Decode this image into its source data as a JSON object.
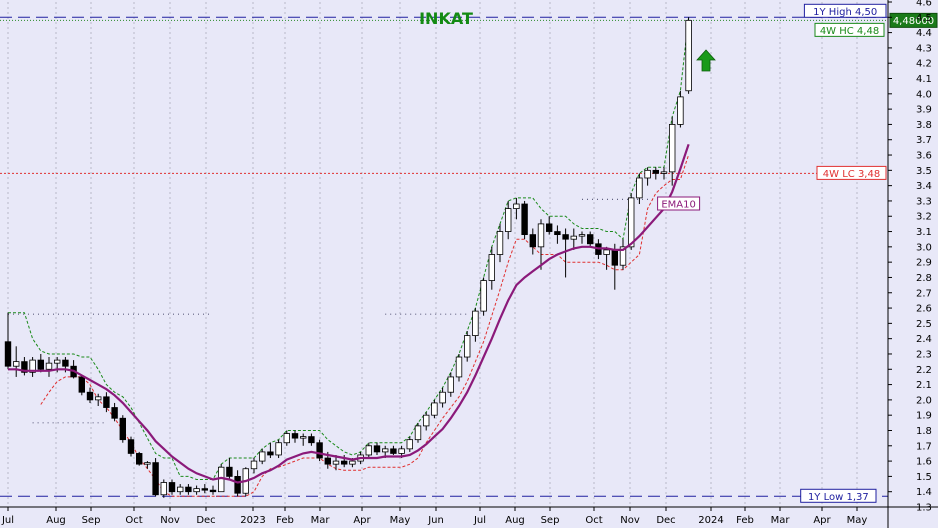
{
  "chart_data": {
    "type": "candlestick",
    "title": "INKAT",
    "colors": {
      "background": "#e8e8f8",
      "grid": "#b8b8c8",
      "up_body": "#ffffff",
      "down_body": "#000000",
      "ema": "#8b1a7a",
      "stop_upper": "#1a8a1a",
      "stop_lower": "#e03030",
      "high_low_line": "#2020a0",
      "last_price_bg": "#1a7a1a",
      "arrow": "#1a9a1a",
      "dotted_levels": "#606080"
    },
    "y_axis": {
      "min": 1.3,
      "max": 4.6,
      "position": "right",
      "ticks": [
        "1.3",
        "1.4",
        "1.5",
        "1.6",
        "1.7",
        "1.8",
        "1.9",
        "2.0",
        "2.1",
        "2.2",
        "2.3",
        "2.4",
        "2.5",
        "2.6",
        "2.7",
        "2.8",
        "2.9",
        "3.0",
        "3.1",
        "3.2",
        "3.3",
        "3.4",
        "3.5",
        "3.6",
        "3.7",
        "3.8",
        "3.9",
        "4.0",
        "4.1",
        "4.2",
        "4.3",
        "4.4",
        "4.5",
        "4.6"
      ]
    },
    "x_axis": {
      "labels": [
        "Jul",
        "Aug",
        "Sep",
        "Oct",
        "Nov",
        "Dec",
        "2023",
        "Feb",
        "Mar",
        "Apr",
        "May",
        "Jun",
        "Jul",
        "Aug",
        "Sep",
        "Oct",
        "Nov",
        "Dec",
        "2024",
        "Feb",
        "Mar",
        "Apr",
        "May"
      ]
    },
    "annotations": {
      "high_1y": {
        "label": "1Y High 4,50",
        "value": 4.5
      },
      "hc_4w": {
        "label": "4W HC 4,48",
        "value": 4.48
      },
      "last_price": {
        "label": "4,48000",
        "value": 4.48
      },
      "lc_4w": {
        "label": "4W LC 3,48",
        "value": 3.48
      },
      "ema_label": "EMA10",
      "low_1y": {
        "label": "1Y Low 1,37",
        "value": 1.37
      }
    },
    "dotted_levels": [
      {
        "value": 2.56,
        "from_week": 0,
        "to_week": 25
      },
      {
        "value": 2.56,
        "from_week": 46,
        "to_week": 56
      },
      {
        "value": 1.85,
        "from_week": 3,
        "to_week": 12
      },
      {
        "value": 3.31,
        "from_week": 70,
        "to_week": 79
      }
    ],
    "series": [
      {
        "name": "Price",
        "kind": "ohlc",
        "ohlc": [
          [
            2.38,
            2.57,
            2.2,
            2.22
          ],
          [
            2.22,
            2.35,
            2.15,
            2.25
          ],
          [
            2.25,
            2.28,
            2.16,
            2.18
          ],
          [
            2.18,
            2.28,
            2.15,
            2.26
          ],
          [
            2.26,
            2.3,
            2.18,
            2.2
          ],
          [
            2.2,
            2.28,
            2.15,
            2.24
          ],
          [
            2.24,
            2.28,
            2.18,
            2.26
          ],
          [
            2.26,
            2.28,
            2.18,
            2.22
          ],
          [
            2.22,
            2.26,
            2.14,
            2.15
          ],
          [
            2.15,
            2.16,
            2.03,
            2.05
          ],
          [
            2.05,
            2.08,
            1.98,
            2.0
          ],
          [
            2.0,
            2.04,
            1.96,
            2.02
          ],
          [
            2.02,
            2.05,
            1.92,
            1.95
          ],
          [
            1.95,
            1.98,
            1.86,
            1.88
          ],
          [
            1.88,
            1.9,
            1.72,
            1.74
          ],
          [
            1.74,
            1.76,
            1.63,
            1.65
          ],
          [
            1.65,
            1.66,
            1.57,
            1.58
          ],
          [
            1.58,
            1.6,
            1.55,
            1.59
          ],
          [
            1.59,
            1.62,
            1.37,
            1.38
          ],
          [
            1.38,
            1.48,
            1.36,
            1.46
          ],
          [
            1.46,
            1.48,
            1.38,
            1.4
          ],
          [
            1.4,
            1.45,
            1.38,
            1.43
          ],
          [
            1.43,
            1.45,
            1.38,
            1.4
          ],
          [
            1.4,
            1.44,
            1.38,
            1.42
          ],
          [
            1.42,
            1.45,
            1.39,
            1.41
          ],
          [
            1.41,
            1.44,
            1.38,
            1.4
          ],
          [
            1.4,
            1.58,
            1.4,
            1.56
          ],
          [
            1.56,
            1.62,
            1.48,
            1.5
          ],
          [
            1.5,
            1.54,
            1.37,
            1.39
          ],
          [
            1.39,
            1.56,
            1.37,
            1.55
          ],
          [
            1.55,
            1.62,
            1.52,
            1.6
          ],
          [
            1.6,
            1.68,
            1.58,
            1.66
          ],
          [
            1.66,
            1.72,
            1.62,
            1.64
          ],
          [
            1.64,
            1.74,
            1.62,
            1.72
          ],
          [
            1.72,
            1.8,
            1.7,
            1.78
          ],
          [
            1.78,
            1.8,
            1.72,
            1.75
          ],
          [
            1.75,
            1.78,
            1.7,
            1.76
          ],
          [
            1.76,
            1.78,
            1.7,
            1.72
          ],
          [
            1.72,
            1.74,
            1.6,
            1.62
          ],
          [
            1.62,
            1.66,
            1.55,
            1.58
          ],
          [
            1.58,
            1.64,
            1.54,
            1.6
          ],
          [
            1.6,
            1.64,
            1.56,
            1.58
          ],
          [
            1.58,
            1.62,
            1.56,
            1.6
          ],
          [
            1.6,
            1.66,
            1.58,
            1.64
          ],
          [
            1.64,
            1.72,
            1.62,
            1.7
          ],
          [
            1.7,
            1.72,
            1.64,
            1.66
          ],
          [
            1.66,
            1.7,
            1.62,
            1.68
          ],
          [
            1.68,
            1.7,
            1.64,
            1.65
          ],
          [
            1.65,
            1.7,
            1.62,
            1.68
          ],
          [
            1.68,
            1.76,
            1.66,
            1.74
          ],
          [
            1.74,
            1.85,
            1.72,
            1.83
          ],
          [
            1.83,
            1.92,
            1.8,
            1.9
          ],
          [
            1.9,
            2.0,
            1.88,
            1.98
          ],
          [
            1.98,
            2.08,
            1.95,
            2.05
          ],
          [
            2.05,
            2.18,
            2.02,
            2.15
          ],
          [
            2.15,
            2.3,
            2.12,
            2.28
          ],
          [
            2.28,
            2.45,
            2.25,
            2.42
          ],
          [
            2.42,
            2.6,
            2.38,
            2.58
          ],
          [
            2.58,
            2.8,
            2.55,
            2.78
          ],
          [
            2.78,
            3.0,
            2.72,
            2.95
          ],
          [
            2.95,
            3.15,
            2.9,
            3.1
          ],
          [
            3.1,
            3.3,
            3.05,
            3.25
          ],
          [
            3.25,
            3.32,
            3.18,
            3.28
          ],
          [
            3.28,
            3.3,
            3.05,
            3.08
          ],
          [
            3.08,
            3.12,
            2.95,
            3.0
          ],
          [
            3.0,
            3.18,
            2.85,
            3.15
          ],
          [
            3.15,
            3.2,
            3.08,
            3.1
          ],
          [
            3.1,
            3.14,
            3.02,
            3.08
          ],
          [
            3.08,
            3.12,
            2.8,
            3.05
          ],
          [
            3.05,
            3.12,
            2.98,
            3.07
          ],
          [
            3.07,
            3.1,
            3.02,
            3.08
          ],
          [
            3.08,
            3.1,
            3.0,
            3.02
          ],
          [
            3.02,
            3.05,
            2.92,
            2.95
          ],
          [
            2.95,
            3.0,
            2.85,
            2.98
          ],
          [
            2.98,
            3.02,
            2.72,
            2.88
          ],
          [
            2.88,
            3.05,
            2.85,
            3.0
          ],
          [
            3.0,
            3.35,
            2.98,
            3.32
          ],
          [
            3.32,
            3.48,
            3.28,
            3.45
          ],
          [
            3.45,
            3.52,
            3.4,
            3.5
          ],
          [
            3.5,
            3.52,
            3.44,
            3.48
          ],
          [
            3.48,
            3.52,
            3.44,
            3.49
          ],
          [
            3.49,
            3.85,
            3.4,
            3.8
          ],
          [
            3.8,
            4.02,
            3.78,
            3.98
          ],
          [
            4.02,
            4.5,
            4.0,
            4.48
          ]
        ]
      },
      {
        "name": "EMA10",
        "kind": "line",
        "values": [
          2.2,
          2.2,
          2.19,
          2.19,
          2.19,
          2.19,
          2.2,
          2.2,
          2.19,
          2.16,
          2.13,
          2.1,
          2.07,
          2.03,
          1.98,
          1.92,
          1.86,
          1.8,
          1.73,
          1.68,
          1.63,
          1.59,
          1.55,
          1.52,
          1.5,
          1.48,
          1.49,
          1.48,
          1.46,
          1.47,
          1.49,
          1.52,
          1.54,
          1.57,
          1.61,
          1.63,
          1.65,
          1.66,
          1.65,
          1.64,
          1.63,
          1.62,
          1.61,
          1.62,
          1.62,
          1.62,
          1.63,
          1.63,
          1.63,
          1.64,
          1.67,
          1.71,
          1.76,
          1.81,
          1.88,
          1.96,
          2.05,
          2.16,
          2.28,
          2.4,
          2.53,
          2.65,
          2.75,
          2.8,
          2.84,
          2.88,
          2.92,
          2.95,
          2.97,
          2.99,
          3.0,
          3.0,
          2.99,
          2.99,
          2.98,
          2.98,
          3.02,
          3.07,
          3.13,
          3.19,
          3.25,
          3.36,
          3.51,
          3.67
        ]
      },
      {
        "name": "Upper stop",
        "kind": "dashed",
        "values": [
          2.57,
          2.57,
          2.57,
          2.4,
          2.32,
          2.3,
          2.3,
          2.3,
          2.3,
          2.28,
          2.28,
          2.2,
          2.1,
          2.05,
          2.02,
          1.95,
          1.85,
          1.75,
          1.65,
          1.62,
          1.62,
          1.5,
          1.5,
          1.48,
          1.48,
          1.48,
          1.58,
          1.62,
          1.62,
          1.62,
          1.62,
          1.68,
          1.72,
          1.74,
          1.8,
          1.8,
          1.8,
          1.8,
          1.8,
          1.74,
          1.7,
          1.66,
          1.64,
          1.66,
          1.72,
          1.72,
          1.72,
          1.72,
          1.72,
          1.76,
          1.85,
          1.92,
          2.0,
          2.08,
          2.18,
          2.3,
          2.45,
          2.6,
          2.8,
          3.0,
          3.15,
          3.3,
          3.32,
          3.32,
          3.32,
          3.25,
          3.2,
          3.2,
          3.2,
          3.15,
          3.12,
          3.12,
          3.12,
          3.1,
          3.1,
          3.05,
          3.35,
          3.48,
          3.52,
          3.52,
          3.52,
          3.85,
          4.02,
          4.5
        ]
      },
      {
        "name": "Lower stop",
        "kind": "dashed",
        "values": [
          null,
          null,
          null,
          null,
          1.97,
          2.05,
          2.12,
          2.15,
          2.15,
          2.15,
          2.1,
          2.0,
          1.95,
          1.88,
          1.8,
          1.72,
          1.62,
          1.55,
          1.48,
          1.4,
          1.37,
          1.37,
          1.37,
          1.37,
          1.37,
          1.37,
          1.37,
          1.37,
          1.37,
          1.37,
          1.4,
          1.5,
          1.55,
          1.56,
          1.58,
          1.6,
          1.62,
          1.62,
          1.62,
          1.58,
          1.55,
          1.54,
          1.54,
          1.54,
          1.56,
          1.56,
          1.56,
          1.56,
          1.56,
          1.58,
          1.62,
          1.72,
          1.8,
          1.88,
          1.95,
          2.02,
          2.12,
          2.25,
          2.38,
          2.55,
          2.72,
          2.9,
          3.05,
          3.05,
          3.0,
          2.95,
          2.95,
          2.95,
          2.9,
          2.9,
          2.9,
          2.9,
          2.9,
          2.88,
          2.85,
          2.85,
          2.9,
          2.95,
          3.25,
          3.35,
          3.4,
          3.44,
          3.44,
          3.6
        ]
      }
    ]
  }
}
